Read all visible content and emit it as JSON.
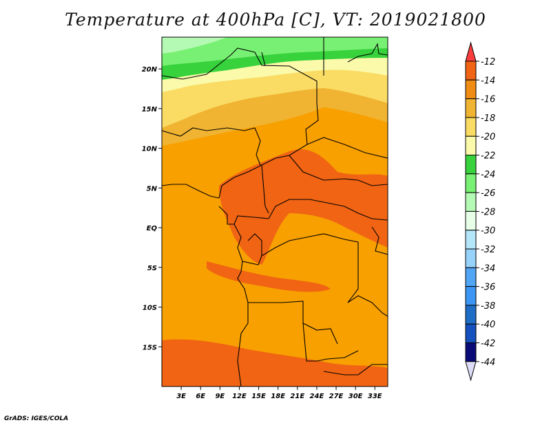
{
  "title": "Temperature at 400hPa [C], VT: 2019021800",
  "footer": "GrADS: IGES/COLA",
  "map": {
    "region": "Central Africa",
    "lat_labels": [
      "20N",
      "15N",
      "10N",
      "5N",
      "EQ",
      "5S",
      "10S",
      "15S"
    ],
    "lon_labels": [
      "3E",
      "6E",
      "9E",
      "12E",
      "15E",
      "18E",
      "21E",
      "24E",
      "27E",
      "30E",
      "33E"
    ],
    "lat_values": [
      20,
      15,
      10,
      5,
      0,
      -5,
      -10,
      -15
    ],
    "lon_values": [
      3,
      6,
      9,
      12,
      15,
      18,
      21,
      24,
      27,
      30,
      33
    ],
    "lat_range": [
      -20,
      24
    ],
    "lon_range": [
      0,
      35
    ]
  },
  "colorbar": {
    "labels": [
      "-12",
      "-14",
      "-16",
      "-18",
      "-20",
      "-22",
      "-24",
      "-26",
      "-28",
      "-30",
      "-32",
      "-34",
      "-36",
      "-38",
      "-40",
      "-42",
      "-44"
    ],
    "colors": [
      "#fa3c3c",
      "#f06414",
      "#f08c14",
      "#f0b432",
      "#fadc64",
      "#fafaaa",
      "#37d23c",
      "#78f073",
      "#b4fab4",
      "#e6ffe6",
      "#b4e6fa",
      "#96d2fa",
      "#50a5f5",
      "#3c96f5",
      "#1e6ec8",
      "#1450be",
      "#0a0a78",
      "#dcdcf8"
    ]
  },
  "colors": {
    "field_base": "#f8a000",
    "warm_band": "#f06414",
    "mid_band": "#f0b432",
    "light_band": "#fadc64",
    "pale_band": "#fafaaa",
    "green_band": "#37d23c",
    "lightgreen_band": "#78f073"
  }
}
